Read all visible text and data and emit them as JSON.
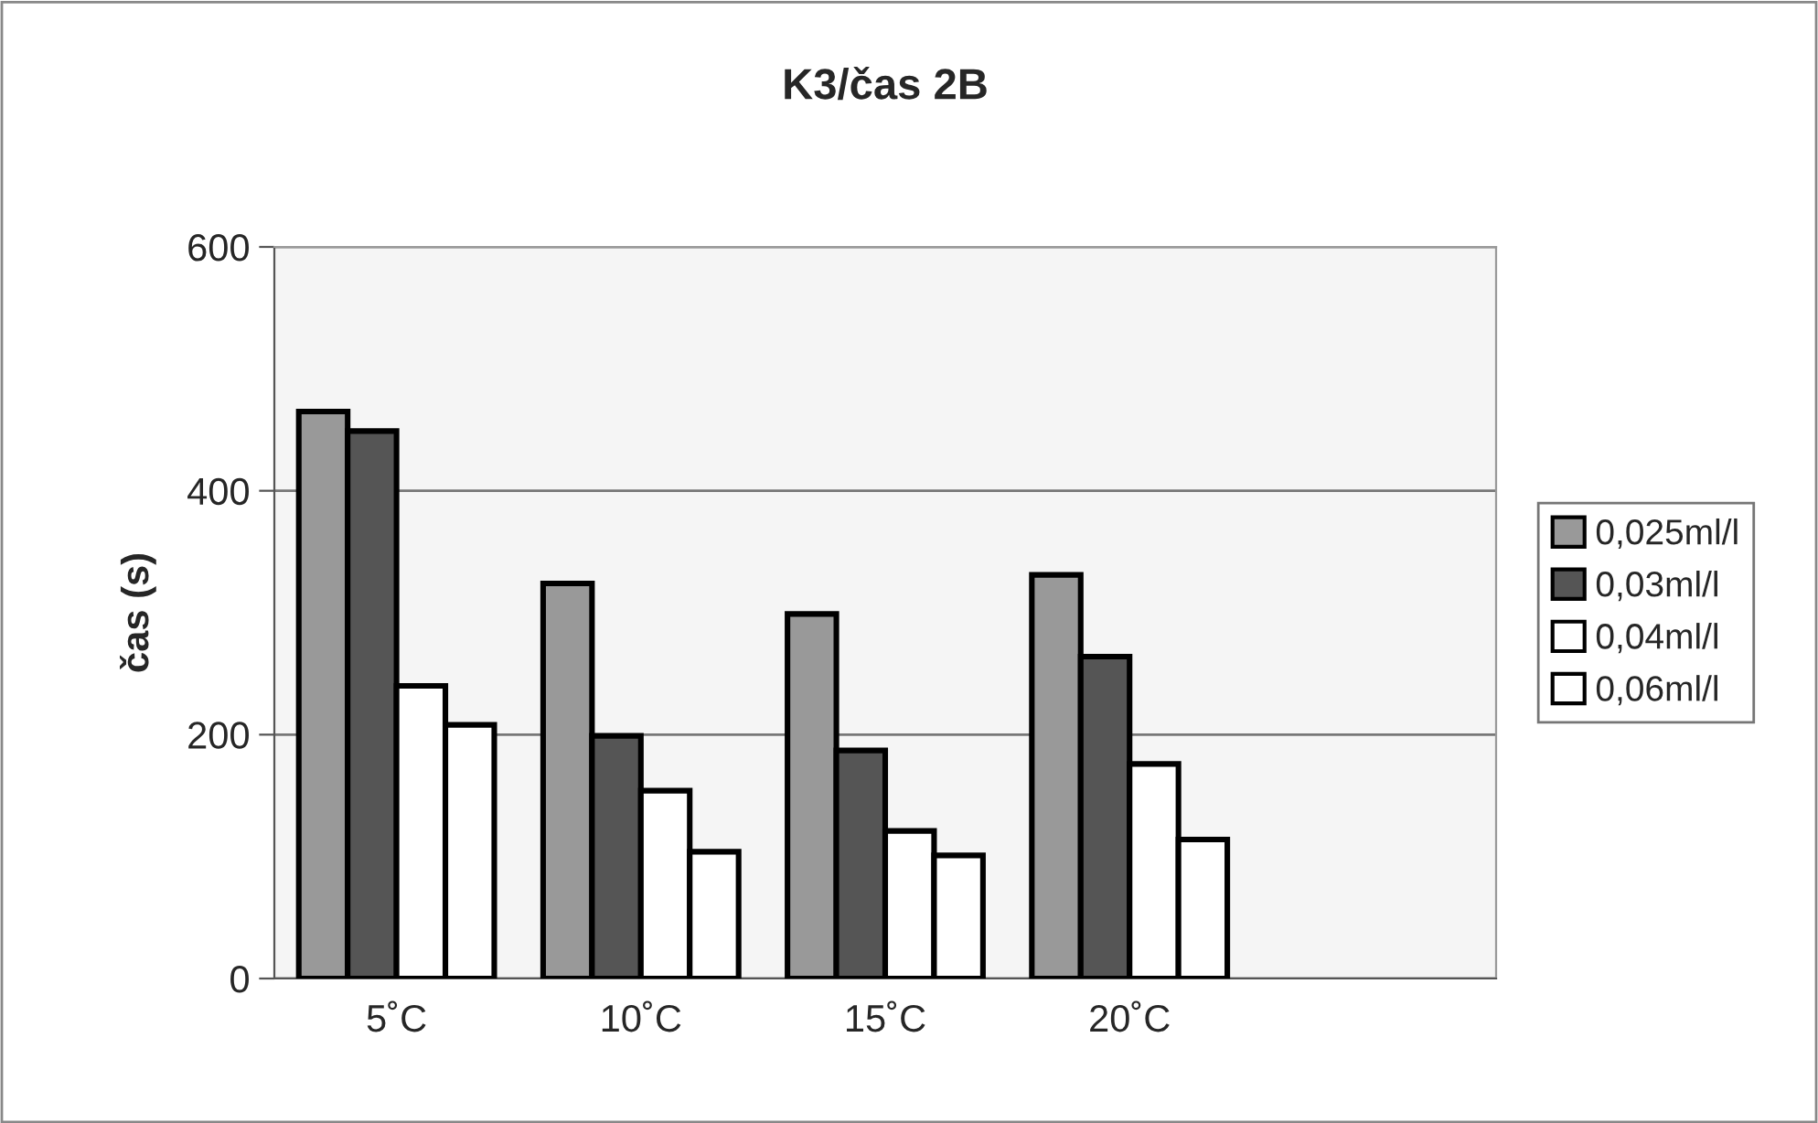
{
  "chart_data": {
    "type": "bar",
    "title": "K3/čas 2B",
    "ylabel": "čas (s)",
    "categories": [
      "5˚C",
      "10˚C",
      "15˚C",
      "20˚C",
      null
    ],
    "series": [
      {
        "name": "0,025ml/l",
        "color": "#999999",
        "values": [
          465,
          324,
          299,
          331,
          null
        ]
      },
      {
        "name": "0,03ml/l",
        "color": "#555555",
        "values": [
          449,
          199,
          187,
          264,
          null
        ]
      },
      {
        "name": "0,04ml/l",
        "color": "#ffffff",
        "values": [
          240,
          154,
          121,
          176,
          null
        ]
      },
      {
        "name": "0,06ml/l",
        "color": "#ffffff",
        "values": [
          208,
          104,
          101,
          114,
          null
        ]
      }
    ],
    "ylim": [
      0,
      600
    ],
    "yticks": [
      0,
      200,
      400,
      600
    ],
    "grid": "y",
    "legend": "right"
  }
}
